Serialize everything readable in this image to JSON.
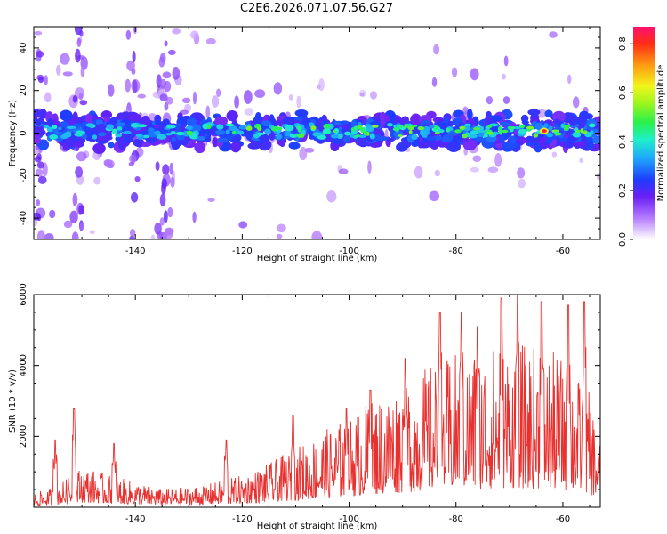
{
  "title": "C2E6.2026.071.07.56.G27",
  "chart_data": [
    {
      "type": "heatmap",
      "title": "C2E6.2026.071.07.56.G27",
      "xlabel": "Height of straight line (km)",
      "ylabel": "Frequency (Hz)",
      "xlim": [
        -159,
        -53
      ],
      "ylim": [
        -50,
        50
      ],
      "xticks": [
        -140,
        -120,
        -100,
        -80,
        -60
      ],
      "xtick_labels": [
        "-140",
        "-120",
        "-100",
        "-80",
        "-60"
      ],
      "yticks": [
        -40,
        -20,
        0,
        20,
        40
      ],
      "ytick_labels": [
        "-40",
        "-20",
        "0",
        "20",
        "40"
      ],
      "colorbar": {
        "label": "Normalized spectral amplitude",
        "range": [
          0,
          0.87
        ],
        "ticks": [
          0,
          0.2,
          0.4,
          0.6,
          0.8
        ],
        "tick_labels": [
          "0.0",
          "0.2",
          "0.4",
          "0.6",
          "0.8"
        ]
      },
      "band_center_hz": 1,
      "band_halfwidth_hz": 6,
      "peak": {
        "x": -63.5,
        "y": 0,
        "value": 0.87
      }
    },
    {
      "type": "line",
      "xlabel": "Height of straight line (km)",
      "ylabel": "SNR (10 * v/v)",
      "xlim": [
        -159,
        -53
      ],
      "ylim": [
        0,
        6000
      ],
      "xticks": [
        -140,
        -120,
        -100,
        -80,
        -60
      ],
      "xtick_labels": [
        "-140",
        "-120",
        "-100",
        "-80",
        "-60"
      ],
      "yticks": [
        2000,
        4000,
        6000
      ],
      "ytick_labels": [
        "2000",
        "4000",
        "6000"
      ],
      "color": "#e8312f",
      "envelope": {
        "x": [
          -159,
          -155,
          -152,
          -150,
          -145,
          -140,
          -135,
          -130,
          -125,
          -120,
          -115,
          -110,
          -105,
          -100,
          -95,
          -90,
          -85,
          -80,
          -75,
          -70,
          -65,
          -60,
          -55,
          -53
        ],
        "y": [
          300,
          450,
          700,
          900,
          700,
          550,
          400,
          450,
          550,
          700,
          950,
          1300,
          1650,
          2000,
          2400,
          2750,
          3100,
          3350,
          3500,
          3600,
          3500,
          3300,
          2500,
          1400
        ]
      },
      "peaks": [
        {
          "x": -151.5,
          "y": 2800
        },
        {
          "x": -144,
          "y": 1800
        },
        {
          "x": -155,
          "y": 1900
        },
        {
          "x": -123,
          "y": 1900
        },
        {
          "x": -110.5,
          "y": 2600
        },
        {
          "x": -100.5,
          "y": 2800
        },
        {
          "x": -96,
          "y": 3300
        },
        {
          "x": -89.5,
          "y": 4200
        },
        {
          "x": -83,
          "y": 5500
        },
        {
          "x": -79,
          "y": 5500
        },
        {
          "x": -76,
          "y": 5100
        },
        {
          "x": -71.5,
          "y": 5900
        },
        {
          "x": -68.5,
          "y": 6000
        },
        {
          "x": -64,
          "y": 5800
        },
        {
          "x": -59,
          "y": 5700
        },
        {
          "x": -56,
          "y": 5800
        }
      ]
    }
  ]
}
